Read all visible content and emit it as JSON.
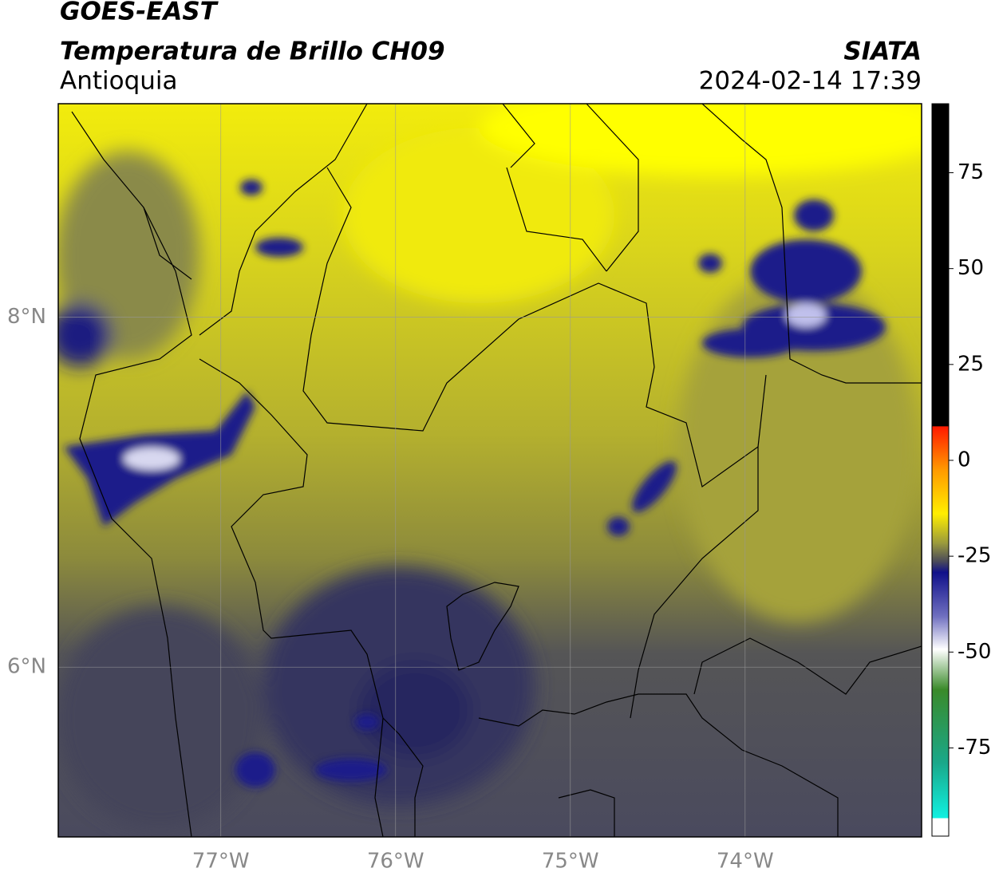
{
  "header": {
    "title": "GOES-EAST",
    "subtitle": "Temperatura de Brillo CH09",
    "region": "Antioquia",
    "source": "SIATA",
    "timestamp": "2024-02-14 17:39"
  },
  "map": {
    "lonlim": [
      -77.93,
      -72.99
    ],
    "latlim": [
      5.03,
      9.22
    ],
    "lon_ticks": [
      {
        "value": -77,
        "label": "77°W"
      },
      {
        "value": -76,
        "label": "76°W"
      },
      {
        "value": -75,
        "label": "75°W"
      },
      {
        "value": -74,
        "label": "74°W"
      }
    ],
    "lat_ticks": [
      {
        "value": 8,
        "label": "8°N"
      },
      {
        "value": 6,
        "label": "6°N"
      }
    ],
    "grid": true
  },
  "colorbar": {
    "lim": [
      -98,
      93
    ],
    "ticks": [
      75,
      50,
      25,
      0,
      -25,
      -50,
      -75
    ]
  }
}
